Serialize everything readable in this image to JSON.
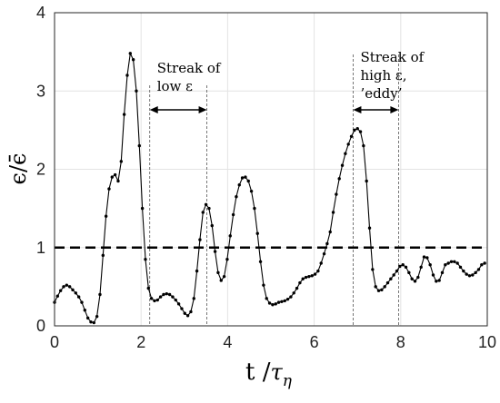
{
  "chart_data": {
    "type": "line",
    "title": "",
    "xlabel": "t /",
    "xlabel_symbol": "τ",
    "xlabel_sub": "η",
    "ylabel": "ϵ/ϵ̄",
    "xlim": [
      0,
      10
    ],
    "ylim": [
      0,
      4
    ],
    "xticks": [
      "0",
      "2",
      "4",
      "6",
      "8",
      "10"
    ],
    "yticks": [
      "0",
      "1",
      "2",
      "3",
      "4"
    ],
    "grid": true,
    "reference_line": {
      "y": 1,
      "style": "dashed"
    },
    "series": [
      {
        "x": [
          0,
          0.07,
          0.14,
          0.21,
          0.28,
          0.35,
          0.42,
          0.49,
          0.56,
          0.63,
          0.7,
          0.77,
          0.84,
          0.91,
          0.98,
          1.05,
          1.12,
          1.19,
          1.26,
          1.33,
          1.4,
          1.47,
          1.54,
          1.61,
          1.68,
          1.75,
          1.82,
          1.89,
          1.96,
          2.03,
          2.1,
          2.17,
          2.24,
          2.31,
          2.38,
          2.45,
          2.52,
          2.59,
          2.66,
          2.73,
          2.8,
          2.87,
          2.94,
          3.01,
          3.08,
          3.15,
          3.22,
          3.29,
          3.36,
          3.43,
          3.5,
          3.57,
          3.64,
          3.71,
          3.78,
          3.85,
          3.92,
          3.99,
          4.06,
          4.13,
          4.2,
          4.27,
          4.34,
          4.41,
          4.48,
          4.55,
          4.62,
          4.69,
          4.76,
          4.83,
          4.9,
          4.97,
          5.04,
          5.11,
          5.18,
          5.25,
          5.32,
          5.39,
          5.46,
          5.53,
          5.6,
          5.67,
          5.74,
          5.81,
          5.88,
          5.95,
          6.02,
          6.09,
          6.16,
          6.23,
          6.3,
          6.37,
          6.44,
          6.51,
          6.58,
          6.65,
          6.72,
          6.79,
          6.86,
          6.93,
          7.0,
          7.07,
          7.14,
          7.21,
          7.28,
          7.35,
          7.42,
          7.49,
          7.56,
          7.63,
          7.7,
          7.77,
          7.84,
          7.91,
          7.98,
          8.05,
          8.12,
          8.19,
          8.26,
          8.33,
          8.4,
          8.47,
          8.54,
          8.61,
          8.68,
          8.75,
          8.82,
          8.89,
          8.96,
          9.03,
          9.1,
          9.17,
          9.24,
          9.31,
          9.38,
          9.45,
          9.52,
          9.59,
          9.66,
          9.73,
          9.8,
          9.87,
          9.94
        ],
        "y": [
          0.3,
          0.38,
          0.45,
          0.5,
          0.52,
          0.5,
          0.46,
          0.42,
          0.37,
          0.3,
          0.2,
          0.1,
          0.05,
          0.04,
          0.12,
          0.4,
          0.9,
          1.4,
          1.75,
          1.9,
          1.93,
          1.85,
          2.1,
          2.7,
          3.2,
          3.48,
          3.4,
          3.0,
          2.3,
          1.5,
          0.85,
          0.48,
          0.35,
          0.32,
          0.33,
          0.37,
          0.4,
          0.41,
          0.4,
          0.37,
          0.33,
          0.28,
          0.22,
          0.16,
          0.13,
          0.18,
          0.35,
          0.7,
          1.1,
          1.45,
          1.55,
          1.5,
          1.28,
          0.95,
          0.68,
          0.58,
          0.63,
          0.85,
          1.15,
          1.42,
          1.65,
          1.8,
          1.89,
          1.9,
          1.85,
          1.72,
          1.5,
          1.18,
          0.82,
          0.52,
          0.35,
          0.29,
          0.27,
          0.28,
          0.3,
          0.31,
          0.32,
          0.34,
          0.37,
          0.42,
          0.48,
          0.55,
          0.6,
          0.62,
          0.63,
          0.64,
          0.66,
          0.7,
          0.8,
          0.92,
          1.05,
          1.2,
          1.45,
          1.68,
          1.88,
          2.05,
          2.2,
          2.32,
          2.42,
          2.5,
          2.52,
          2.48,
          2.3,
          1.85,
          1.25,
          0.72,
          0.5,
          0.45,
          0.46,
          0.5,
          0.55,
          0.6,
          0.65,
          0.7,
          0.76,
          0.78,
          0.75,
          0.68,
          0.6,
          0.57,
          0.62,
          0.75,
          0.88,
          0.87,
          0.78,
          0.65,
          0.57,
          0.58,
          0.68,
          0.78,
          0.8,
          0.82,
          0.82,
          0.8,
          0.75,
          0.7,
          0.66,
          0.64,
          0.65,
          0.68,
          0.72,
          0.78,
          0.8
        ]
      }
    ],
    "annotations": [
      {
        "lines": [
          "Streak of",
          "low ε"
        ],
        "x_start": 2.2,
        "x_end": 3.52
      },
      {
        "lines": [
          "Streak of",
          "high ε,",
          "’eddy’"
        ],
        "x_start": 6.9,
        "x_end": 7.95
      }
    ]
  }
}
